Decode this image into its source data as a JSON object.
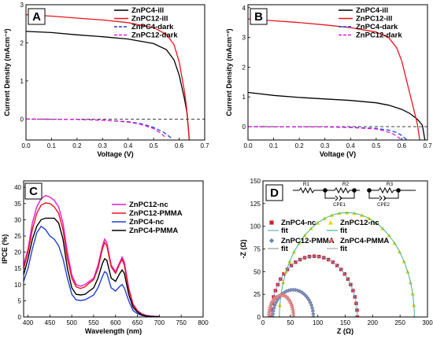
{
  "chart_data": [
    {
      "panel": "A",
      "type": "line",
      "xlabel": "Voltage (V)",
      "ylabel": "Current Density (mAcm⁻²)",
      "xlim": [
        0.0,
        0.7
      ],
      "ylim": [
        -0.55,
        3.0
      ],
      "xticks": [
        "0.0",
        "0.1",
        "0.2",
        "0.3",
        "0.4",
        "0.5",
        "0.6",
        "0.7"
      ],
      "yticks": [
        "0",
        "1",
        "2",
        "3"
      ],
      "legend_position": "top-right",
      "series": [
        {
          "name": "ZnPC4-ill",
          "color": "#000000",
          "dash": "solid",
          "x": [
            0,
            0.1,
            0.2,
            0.3,
            0.4,
            0.5,
            0.55,
            0.58,
            0.6,
            0.62,
            0.63,
            0.64
          ],
          "y": [
            2.3,
            2.27,
            2.21,
            2.16,
            2.1,
            1.98,
            1.82,
            1.55,
            1.15,
            0.55,
            0.2,
            -0.55
          ]
        },
        {
          "name": "ZnPC12-ill",
          "color": "#e8141b",
          "dash": "solid",
          "x": [
            0,
            0.1,
            0.2,
            0.3,
            0.4,
            0.5,
            0.55,
            0.58,
            0.6,
            0.62,
            0.63,
            0.64
          ],
          "y": [
            2.74,
            2.7,
            2.65,
            2.6,
            2.53,
            2.4,
            2.22,
            1.95,
            1.5,
            0.75,
            0.25,
            -0.55
          ]
        },
        {
          "name": "ZnPC4-dark",
          "color": "#1f3fd6",
          "dash": "dashed",
          "x": [
            0,
            0.2,
            0.3,
            0.4,
            0.45,
            0.5,
            0.54,
            0.57
          ],
          "y": [
            0,
            -0.01,
            -0.03,
            -0.07,
            -0.12,
            -0.22,
            -0.35,
            -0.5
          ]
        },
        {
          "name": "ZnPC12-dark",
          "color": "#e619d8",
          "dash": "dashed",
          "x": [
            0,
            0.2,
            0.3,
            0.4,
            0.45,
            0.5,
            0.53,
            0.55
          ],
          "y": [
            0,
            -0.01,
            -0.03,
            -0.08,
            -0.14,
            -0.25,
            -0.38,
            -0.5
          ]
        }
      ]
    },
    {
      "panel": "B",
      "type": "line",
      "xlabel": "Voltage (V)",
      "ylabel": "Current Density (mAcm⁻²)",
      "xlim": [
        0.0,
        0.7
      ],
      "ylim": [
        -0.45,
        4.1
      ],
      "xticks": [
        "0.0",
        "0.1",
        "0.2",
        "0.3",
        "0.4",
        "0.5",
        "0.6",
        "0.7"
      ],
      "yticks": [
        "0",
        "1",
        "2",
        "3",
        "4"
      ],
      "legend_position": "top-right",
      "series": [
        {
          "name": "ZnPC4-ill",
          "color": "#000000",
          "dash": "solid",
          "x": [
            0,
            0.1,
            0.2,
            0.3,
            0.4,
            0.5,
            0.55,
            0.6,
            0.63,
            0.66,
            0.68,
            0.69
          ],
          "y": [
            1.15,
            1.05,
            0.98,
            0.93,
            0.88,
            0.8,
            0.72,
            0.58,
            0.45,
            0.25,
            0.05,
            -0.45
          ]
        },
        {
          "name": "ZnPC12-ill",
          "color": "#e8141b",
          "dash": "solid",
          "x": [
            0,
            0.1,
            0.2,
            0.3,
            0.4,
            0.5,
            0.55,
            0.58,
            0.6,
            0.62,
            0.64,
            0.66,
            0.67
          ],
          "y": [
            3.62,
            3.56,
            3.5,
            3.42,
            3.33,
            3.18,
            2.98,
            2.65,
            2.2,
            1.5,
            0.8,
            0.1,
            -0.45
          ]
        },
        {
          "name": "ZnPC4-dark",
          "color": "#1f3fd6",
          "dash": "dashed",
          "x": [
            0,
            0.3,
            0.4,
            0.5,
            0.55,
            0.58,
            0.6,
            0.62
          ],
          "y": [
            0,
            -0.01,
            -0.02,
            -0.06,
            -0.12,
            -0.2,
            -0.3,
            -0.45
          ]
        },
        {
          "name": "ZnPC12-dark",
          "color": "#e619d8",
          "dash": "dashed",
          "x": [
            0,
            0.3,
            0.4,
            0.5,
            0.53,
            0.56,
            0.58,
            0.6
          ],
          "y": [
            0,
            -0.01,
            -0.03,
            -0.08,
            -0.14,
            -0.22,
            -0.32,
            -0.45
          ]
        }
      ]
    },
    {
      "panel": "C",
      "type": "line",
      "xlabel": "Wavelength (nm)",
      "ylabel": "IPCE (%)",
      "xlim": [
        390,
        800
      ],
      "ylim": [
        0,
        42
      ],
      "xticks": [
        "400",
        "450",
        "500",
        "550",
        "600",
        "650",
        "700",
        "750",
        "800"
      ],
      "yticks": [
        "0",
        "5",
        "10",
        "15",
        "20",
        "25",
        "30",
        "35",
        "40"
      ],
      "legend_position": "top-right",
      "series": [
        {
          "name": "ZnPC12-nc",
          "color": "#e619d8",
          "dash": "solid",
          "x": [
            390,
            400,
            410,
            420,
            430,
            440,
            450,
            460,
            470,
            480,
            490,
            500,
            510,
            520,
            530,
            540,
            550,
            560,
            570,
            575,
            580,
            590,
            600,
            610,
            615,
            620,
            630,
            640,
            650,
            660,
            670,
            680,
            690,
            700
          ],
          "y": [
            16,
            21,
            29,
            34,
            36.5,
            37.5,
            37,
            36,
            34,
            29,
            20,
            13,
            10,
            9.5,
            10,
            11,
            12,
            16,
            22,
            24,
            23,
            16,
            14,
            17,
            18.5,
            17,
            9,
            4,
            2,
            1,
            0.5,
            0.3,
            0.2,
            0.1
          ]
        },
        {
          "name": "ZnPC12-PMMA",
          "color": "#e8141b",
          "dash": "solid",
          "x": [
            390,
            400,
            410,
            420,
            430,
            440,
            450,
            460,
            470,
            480,
            490,
            500,
            510,
            520,
            530,
            540,
            550,
            560,
            570,
            575,
            580,
            590,
            600,
            610,
            615,
            620,
            630,
            640,
            650,
            660,
            670,
            680,
            690,
            700
          ],
          "y": [
            15,
            20,
            27,
            32,
            34.5,
            35.2,
            35,
            34,
            32,
            27,
            18,
            12,
            9.3,
            8.8,
            9.3,
            10.5,
            11.5,
            15,
            21,
            23,
            22,
            15.5,
            13.5,
            16.5,
            17.8,
            16,
            8.5,
            3.8,
            1.8,
            0.8,
            0.4,
            0.2,
            0.1,
            0.1
          ]
        },
        {
          "name": "ZnPC4-nc",
          "color": "#1f3fd6",
          "dash": "solid",
          "x": [
            390,
            400,
            410,
            420,
            430,
            440,
            450,
            460,
            470,
            480,
            490,
            500,
            510,
            520,
            530,
            540,
            550,
            560,
            570,
            575,
            580,
            590,
            600,
            610,
            615,
            620,
            630,
            640,
            650,
            660,
            670,
            680,
            690,
            700
          ],
          "y": [
            11,
            15,
            21,
            26,
            28,
            27,
            25,
            24,
            22,
            18,
            12,
            7,
            5.3,
            5.1,
            5.3,
            6,
            6.8,
            9,
            12.5,
            14,
            13.5,
            9,
            8,
            9.5,
            10,
            9,
            5,
            2,
            1,
            0.5,
            0.3,
            0.2,
            0.1,
            0.1
          ]
        },
        {
          "name": "ZnPC4-PMMA",
          "color": "#000000",
          "dash": "solid",
          "x": [
            390,
            400,
            410,
            420,
            430,
            440,
            450,
            460,
            470,
            480,
            490,
            500,
            510,
            520,
            530,
            540,
            550,
            560,
            570,
            575,
            580,
            590,
            600,
            610,
            615,
            620,
            630,
            640,
            650,
            660,
            670,
            680,
            690,
            700
          ],
          "y": [
            13,
            18,
            24,
            28,
            30,
            30.5,
            30.5,
            30.5,
            29,
            24,
            15,
            9,
            7,
            6.8,
            7,
            8,
            9,
            12,
            16.5,
            18,
            17.5,
            12,
            11,
            13.5,
            14.5,
            13.5,
            7,
            3,
            1.5,
            0.6,
            0.3,
            0.2,
            0.1,
            0.1
          ]
        }
      ]
    },
    {
      "panel": "D",
      "type": "scatter",
      "xlabel": "Z (Ω)",
      "ylabel": "-Z (Ω)",
      "xlim": [
        0,
        300
      ],
      "ylim": [
        0,
        150
      ],
      "xticks": [
        "0",
        "50",
        "100",
        "150",
        "200",
        "250",
        "300"
      ],
      "yticks": [
        "0",
        "25",
        "50",
        "75",
        "100",
        "125",
        "150"
      ],
      "legend_position": "middle",
      "circuit_labels": [
        "R1",
        "R2",
        "R3",
        "CPE1",
        "CPE2"
      ],
      "series": [
        {
          "name": "ZnPC4-nc",
          "marker": "square",
          "color": "#d0202a",
          "arc": {
            "start": 15,
            "end": 172,
            "height": 67
          }
        },
        {
          "name": "fit",
          "line": true,
          "color": "#6aa6d6",
          "arc": {
            "start": 15,
            "end": 172,
            "height": 67
          }
        },
        {
          "name": "ZnPC12-nc",
          "marker": "triangle",
          "color": "#f0d400",
          "arc": {
            "start": 30,
            "end": 276,
            "height": 115
          }
        },
        {
          "name": "fit",
          "line": true,
          "color": "#3ab29a",
          "arc": {
            "start": 30,
            "end": 276,
            "height": 115
          }
        },
        {
          "name": "ZnPC12-PMMA",
          "marker": "diamond",
          "color": "#6b7fb8",
          "arc": {
            "start": 18,
            "end": 92,
            "height": 30
          }
        },
        {
          "name": "fit",
          "line": true,
          "color": "#999999",
          "arc": {
            "start": 18,
            "end": 92,
            "height": 30
          }
        },
        {
          "name": "ZnPC4-PMMA",
          "marker": "triangle-left",
          "color": "#f07070",
          "arc": {
            "start": 10,
            "end": 55,
            "height": 24
          }
        },
        {
          "name": "fit",
          "line": true,
          "color": "#aaaaaa",
          "arc": {
            "start": 10,
            "end": 55,
            "height": 24
          }
        }
      ]
    }
  ]
}
